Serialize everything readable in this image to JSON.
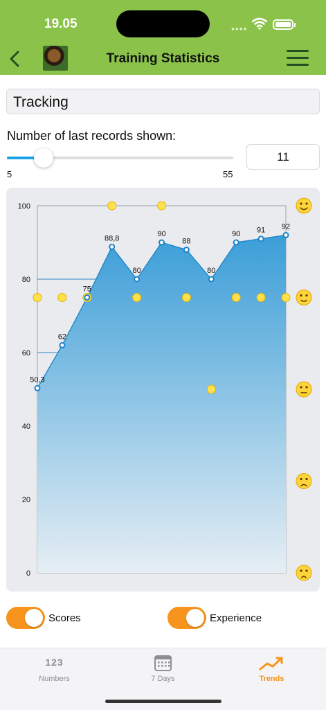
{
  "status": {
    "time": "19.05"
  },
  "nav": {
    "title": "Training Statistics"
  },
  "tracking_field": {
    "value": "Tracking"
  },
  "records": {
    "label": "Number of last records shown:",
    "min_label": "5",
    "max_label": "55",
    "value": "11",
    "slider_fraction": 0.12
  },
  "colors": {
    "accent_green": "#8bc34a",
    "toggle_orange": "#f7941d",
    "series_blue": "#1a82c8",
    "experience_yellow": "#ffe14d"
  },
  "chart_data": {
    "type": "area",
    "title": "",
    "xlabel": "",
    "ylabel": "",
    "ylim": [
      0,
      100
    ],
    "yticks": [
      "0",
      "20",
      "40",
      "60",
      "80",
      "100"
    ],
    "grid": true,
    "x": [
      1,
      2,
      3,
      4,
      5,
      6,
      7,
      8,
      9,
      10,
      11
    ],
    "series": [
      {
        "values": [
          50.3,
          62,
          75,
          88.8,
          80,
          90,
          88,
          80,
          90,
          91,
          92
        ],
        "labels": [
          "50,3",
          "62",
          "75",
          "88,8",
          "80",
          "90",
          "88",
          "80",
          "90",
          "91",
          "92"
        ],
        "style": "area"
      },
      {
        "values": [
          75,
          75,
          75,
          100,
          75,
          100,
          75,
          50,
          75,
          75,
          75
        ],
        "style": "points"
      }
    ],
    "right_axis_icons": [
      "smile-beaming-icon",
      "smile-icon",
      "neutral-face-icon",
      "frown-icon",
      "worried-face-icon"
    ]
  },
  "toggles": {
    "scores": {
      "label": "Scores",
      "on": true
    },
    "experience": {
      "label": "Experience",
      "on": true
    }
  },
  "tabs": [
    {
      "label": "Numbers",
      "icon": "123",
      "active": false
    },
    {
      "label": "7 Days",
      "icon": "calendar-icon",
      "active": false
    },
    {
      "label": "Trends",
      "icon": "trend-icon",
      "active": true
    }
  ]
}
